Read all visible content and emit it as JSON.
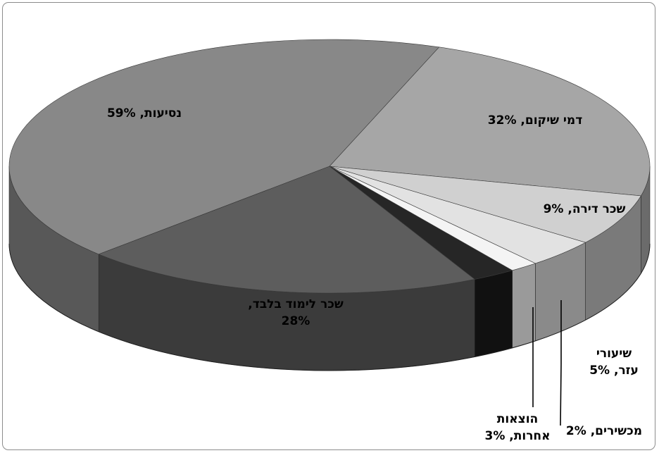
{
  "chart_data": {
    "type": "pie",
    "variant": "3d",
    "title": "",
    "legend": "none",
    "slices": [
      {
        "label": "דמי שיקום, 32%",
        "lines": [
          "דמי שיקום, 32%"
        ],
        "value": 32,
        "color": "#a6a6a6",
        "side_color": "#6b6b6b"
      },
      {
        "label": "שכר דירה, 9%",
        "lines": [
          "שכר דירה, 9%"
        ],
        "value": 9,
        "color": "#d0d0d0",
        "side_color": "#7a7a7a"
      },
      {
        "label": "שיעורי עזר, 5%",
        "lines": [
          "שיעורי",
          "עזר, 5%"
        ],
        "value": 5,
        "color": "#e2e2e2",
        "side_color": "#8a8a8a"
      },
      {
        "label": "מכשירים, 2%",
        "lines": [
          "מכשירים, 2%"
        ],
        "value": 2,
        "color": "#f4f4f4",
        "side_color": "#9a9a9a"
      },
      {
        "label": "הוצאות אחרות, 3%",
        "lines": [
          "הוצאות",
          "אחרות, 3%"
        ],
        "value": 3,
        "color": "#262626",
        "side_color": "#111111"
      },
      {
        "label": "שכר לימוד בלבד, 28%",
        "lines": [
          "שכר לימוד בלבד,",
          "28%"
        ],
        "value": 28,
        "color": "#5d5d5d",
        "side_color": "#3b3b3b"
      },
      {
        "label": "נסיעות, 59%",
        "lines": [
          "נסיעות, 59%"
        ],
        "value": 59,
        "color": "#888888",
        "side_color": "#585858"
      }
    ]
  }
}
